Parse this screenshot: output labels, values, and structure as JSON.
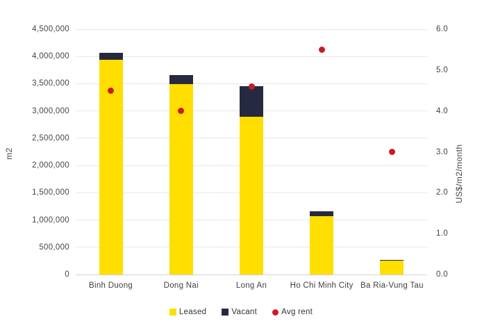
{
  "chart_data": {
    "type": "bar",
    "subtype": "stacked-bar-with-scatter-overlay",
    "title": "",
    "categories": [
      "Binh Duong",
      "Dong Nai",
      "Long An",
      "Ho Chi Minh City",
      "Ba Ria-Vung Tau"
    ],
    "bar_series": [
      {
        "name": "Leased",
        "color": "#FFDE00",
        "values": [
          3940000,
          3490000,
          2890000,
          1070000,
          255000
        ]
      },
      {
        "name": "Vacant",
        "color": "#252A40",
        "values": [
          130000,
          170000,
          560000,
          90000,
          10000
        ]
      }
    ],
    "point_series": {
      "name": "Avg rent",
      "color": "#CB1B26",
      "axis": "right",
      "values": [
        4.5,
        4.0,
        4.6,
        5.5,
        3.0
      ]
    },
    "left_axis": {
      "title": "m2",
      "min": 0,
      "max": 4500000,
      "tick_step": 500000,
      "ticks": [
        {
          "label": "4,500,000",
          "value": 4500000
        },
        {
          "label": "4,000,000",
          "value": 4000000
        },
        {
          "label": "3,500,000",
          "value": 3500000
        },
        {
          "label": "3,000,000",
          "value": 3000000
        },
        {
          "label": "2,500,000",
          "value": 2500000
        },
        {
          "label": "2,000,000",
          "value": 2000000
        },
        {
          "label": "1,500,000",
          "value": 1500000
        },
        {
          "label": "1,000,000",
          "value": 1000000
        },
        {
          "label": "500,000",
          "value": 500000
        },
        {
          "label": "0",
          "value": 0
        }
      ]
    },
    "right_axis": {
      "title": "US$/m2/month",
      "min": 0,
      "max": 6,
      "tick_step": 1,
      "ticks": [
        {
          "label": "6.0",
          "value": 6
        },
        {
          "label": "5.0",
          "value": 5
        },
        {
          "label": "4.0",
          "value": 4
        },
        {
          "label": "3.0",
          "value": 3
        },
        {
          "label": "2.0",
          "value": 2
        },
        {
          "label": "1.0",
          "value": 1
        },
        {
          "label": "0.0",
          "value": 0
        }
      ]
    },
    "legend": [
      {
        "label": "Leased",
        "marker": "square",
        "color": "#FFDE00"
      },
      {
        "label": "Vacant",
        "marker": "square",
        "color": "#252A40"
      },
      {
        "label": "Avg rent",
        "marker": "circle",
        "color": "#CB1B26"
      }
    ],
    "grid": true,
    "legend_position": "bottom",
    "background": "#FFFFFF"
  }
}
